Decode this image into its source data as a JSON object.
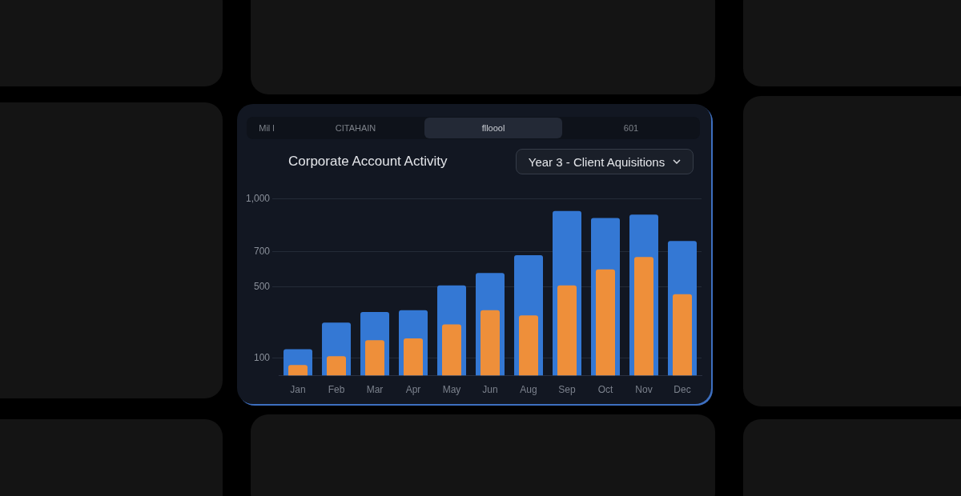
{
  "chart_data": {
    "type": "bar",
    "title": "Corporate Account Activity",
    "subtitle": "Year 3 - Client Aquisitions",
    "annotations": [
      "Mil l",
      "CITAHAIN",
      "flloool",
      "601"
    ],
    "categories": [
      "Jan",
      "Feb",
      "Mar",
      "Apr",
      "May",
      "Jun",
      "Aug",
      "Sep",
      "Oct",
      "Nov",
      "Dec"
    ],
    "series": [
      {
        "color": "#3478d4",
        "values": [
          150,
          300,
          360,
          370,
          510,
          580,
          680,
          930,
          890,
          910,
          760
        ]
      },
      {
        "color": "#ee8f3a",
        "values": [
          60,
          110,
          200,
          210,
          290,
          370,
          340,
          510,
          600,
          670,
          460
        ]
      }
    ],
    "ylim": [
      0,
      1000
    ],
    "yticks": [
      100,
      500,
      700,
      {
        "value": 1000,
        "label": "1,000"
      }
    ],
    "grid": "y",
    "legend": false
  }
}
